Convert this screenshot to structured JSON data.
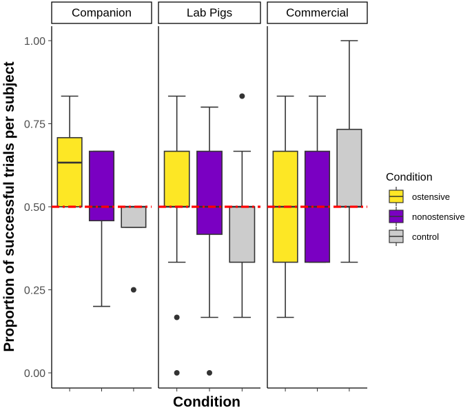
{
  "chart_data": {
    "type": "boxplot",
    "facets": [
      "Companion",
      "Lab Pigs",
      "Commercial"
    ],
    "xlabel": "Condition",
    "ylabel": "Proportion of successful trials per subject",
    "yticks": [
      "0.00",
      "0.25",
      "0.50",
      "0.75",
      "1.00"
    ],
    "ylim": [
      0,
      1
    ],
    "reference_line": 0.5,
    "legend": {
      "title": "Condition",
      "entries": [
        {
          "label": "ostensive",
          "color": "#FDE725"
        },
        {
          "label": "nonostensive",
          "color": "#7A00C2"
        },
        {
          "label": "control",
          "color": "#CCCCCC"
        }
      ]
    },
    "series": [
      {
        "facet": "Companion",
        "condition": "ostensive",
        "min": 0.5,
        "q1": 0.5,
        "median": 0.633,
        "q3": 0.708,
        "max": 0.833,
        "outliers": []
      },
      {
        "facet": "Companion",
        "condition": "nonostensive",
        "min": 0.2,
        "q1": 0.458,
        "median": 0.5,
        "q3": 0.667,
        "max": 0.667,
        "outliers": []
      },
      {
        "facet": "Companion",
        "condition": "control",
        "min": 0.438,
        "q1": 0.438,
        "median": 0.5,
        "q3": 0.5,
        "max": 0.5,
        "outliers": [
          0.25
        ]
      },
      {
        "facet": "Lab Pigs",
        "condition": "ostensive",
        "min": 0.333,
        "q1": 0.5,
        "median": 0.5,
        "q3": 0.667,
        "max": 0.833,
        "outliers": [
          0.167,
          0.0
        ]
      },
      {
        "facet": "Lab Pigs",
        "condition": "nonostensive",
        "min": 0.167,
        "q1": 0.417,
        "median": 0.5,
        "q3": 0.667,
        "max": 0.8,
        "outliers": [
          0.0
        ]
      },
      {
        "facet": "Lab Pigs",
        "condition": "control",
        "min": 0.167,
        "q1": 0.333,
        "median": 0.5,
        "q3": 0.5,
        "max": 0.667,
        "outliers": [
          0.833
        ]
      },
      {
        "facet": "Commercial",
        "condition": "ostensive",
        "min": 0.167,
        "q1": 0.333,
        "median": 0.5,
        "q3": 0.667,
        "max": 0.833,
        "outliers": []
      },
      {
        "facet": "Commercial",
        "condition": "nonostensive",
        "min": 0.333,
        "q1": 0.333,
        "median": 0.5,
        "q3": 0.667,
        "max": 0.833,
        "outliers": []
      },
      {
        "facet": "Commercial",
        "condition": "control",
        "min": 0.333,
        "q1": 0.5,
        "median": 0.5,
        "q3": 0.733,
        "max": 1.0,
        "outliers": []
      }
    ]
  }
}
